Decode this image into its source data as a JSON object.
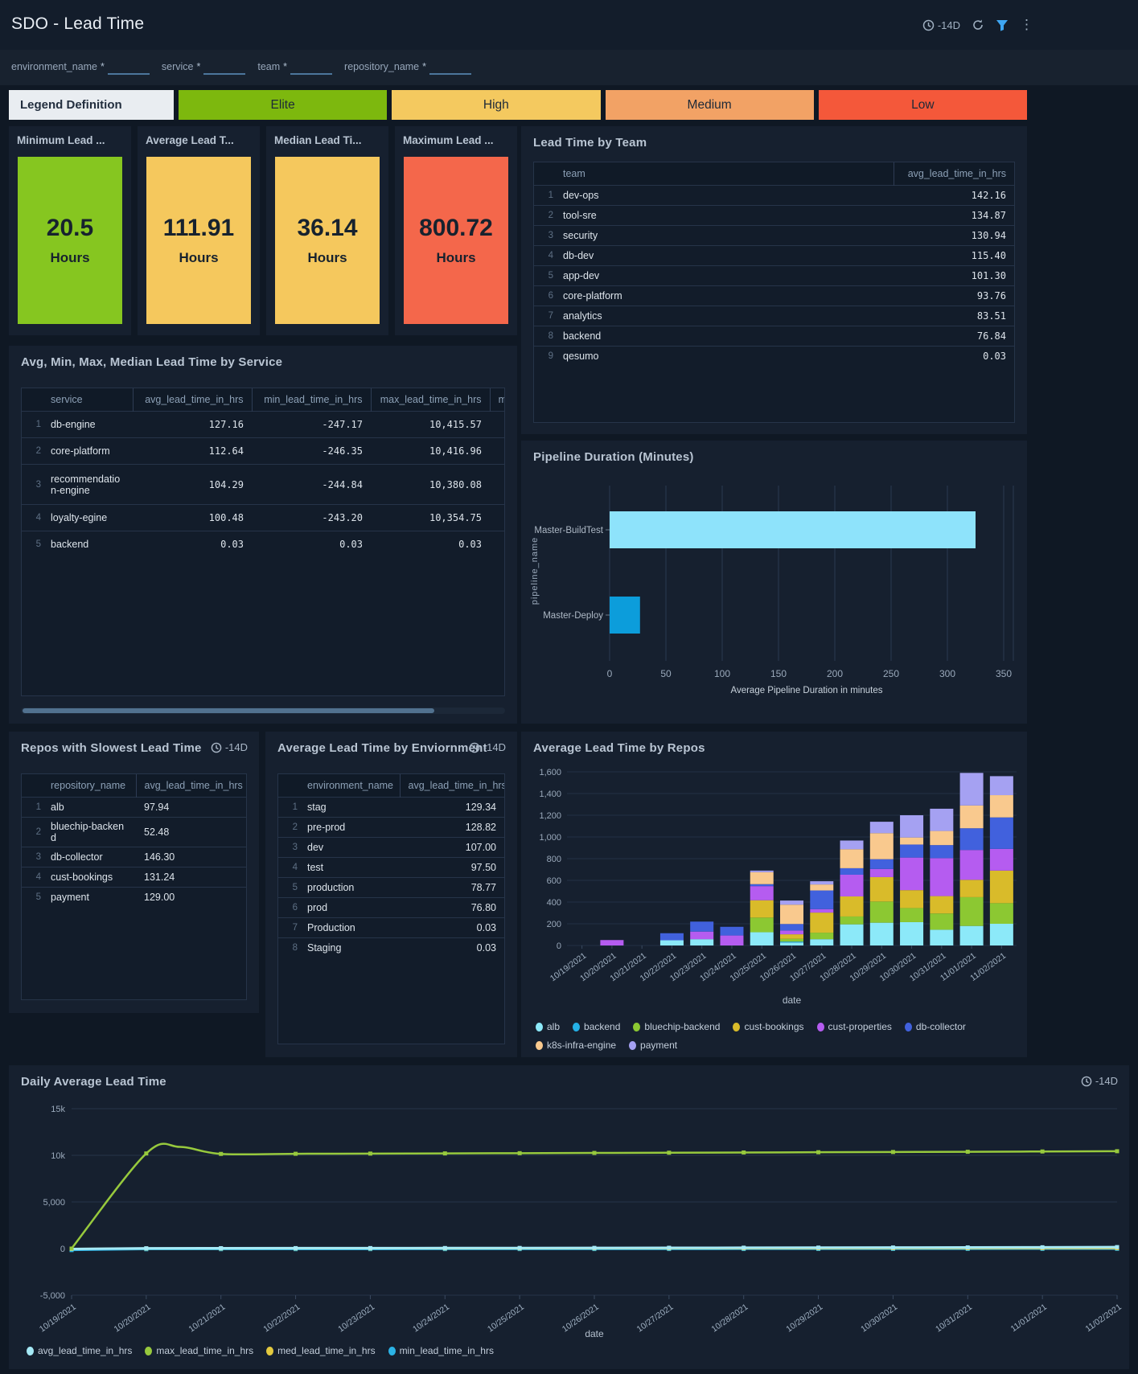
{
  "header": {
    "title": "SDO - Lead Time",
    "time_range": "-14D",
    "icons": [
      "clock-icon",
      "refresh-icon",
      "filter-icon",
      "kebab-menu-icon"
    ]
  },
  "filters": {
    "items": [
      {
        "label": "environment_name",
        "required": "*",
        "value": ""
      },
      {
        "label": "service",
        "required": "*",
        "value": ""
      },
      {
        "label": "team",
        "required": "*",
        "value": ""
      },
      {
        "label": "repository_name",
        "required": "*",
        "value": ""
      }
    ]
  },
  "legend_bar": {
    "definition_label": "Legend Definition",
    "levels": [
      {
        "label": "Elite",
        "color": "#7db80e"
      },
      {
        "label": "High",
        "color": "#f4c95f"
      },
      {
        "label": "Medium",
        "color": "#f2a265"
      },
      {
        "label": "Low",
        "color": "#f4583a"
      }
    ]
  },
  "kpis": [
    {
      "title": "Minimum Lead ...",
      "value": "20.5",
      "unit": "Hours",
      "color": "#86c620"
    },
    {
      "title": "Average Lead T...",
      "value": "111.91",
      "unit": "Hours",
      "color": "#f5c85d"
    },
    {
      "title": "Median Lead Ti...",
      "value": "36.14",
      "unit": "Hours",
      "color": "#f5c85d"
    },
    {
      "title": "Maximum Lead ...",
      "value": "800.72",
      "unit": "Hours",
      "color": "#f4674b"
    }
  ],
  "panels": {
    "team": {
      "title": "Lead Time by Team",
      "columns": [
        "team",
        "avg_lead_time_in_hrs"
      ],
      "rows": [
        [
          "dev-ops",
          "142.16"
        ],
        [
          "tool-sre",
          "134.87"
        ],
        [
          "security",
          "130.94"
        ],
        [
          "db-dev",
          "115.40"
        ],
        [
          "app-dev",
          "101.30"
        ],
        [
          "core-platform",
          "93.76"
        ],
        [
          "analytics",
          "83.51"
        ],
        [
          "backend",
          "76.84"
        ],
        [
          "qesumo",
          "0.03"
        ]
      ]
    },
    "service": {
      "title": "Avg, Min, Max, Median Lead Time by Service",
      "columns": [
        "service",
        "avg_lead_time_in_hrs",
        "min_lead_time_in_hrs",
        "max_lead_time_in_hrs",
        "me"
      ],
      "rows": [
        [
          "db-engine",
          "127.16",
          "-247.17",
          "10,415.57",
          ""
        ],
        [
          "core-platform",
          "112.64",
          "-246.35",
          "10,416.96",
          ""
        ],
        [
          "recommendation-engine",
          "104.29",
          "-244.84",
          "10,380.08",
          ""
        ],
        [
          "loyalty-egine",
          "100.48",
          "-243.20",
          "10,354.75",
          ""
        ],
        [
          "backend",
          "0.03",
          "0.03",
          "0.03",
          ""
        ]
      ]
    },
    "pipeline": {
      "title": "Pipeline Duration (Minutes)",
      "chart_data": {
        "type": "bar",
        "orientation": "horizontal",
        "categories": [
          "Master-BuildTest",
          "Master-Deploy"
        ],
        "values": [
          325,
          27
        ],
        "colors": [
          "#8ee3fb",
          "#0c9ddb"
        ],
        "xlabel": "Average Pipeline Duration in minutes",
        "ylabel": "pipeline_name",
        "xlim": [
          0,
          350
        ],
        "xticks": [
          0,
          50,
          100,
          150,
          200,
          250,
          300,
          350
        ]
      }
    },
    "repos_slowest": {
      "title": "Repos with Slowest Lead Time",
      "time_range": "-14D",
      "columns": [
        "repository_name",
        "avg_lead_time_in_hrs"
      ],
      "rows": [
        [
          "alb",
          "97.94"
        ],
        [
          "bluechip-backend",
          "52.48"
        ],
        [
          "db-collector",
          "146.30"
        ],
        [
          "cust-bookings",
          "131.24"
        ],
        [
          "payment",
          "129.00"
        ]
      ]
    },
    "environment": {
      "title": "Average Lead Time by Enviornment",
      "time_range": "-14D",
      "columns": [
        "environment_name",
        "avg_lead_time_in_hrs"
      ],
      "rows": [
        [
          "stag",
          "129.34"
        ],
        [
          "pre-prod",
          "128.82"
        ],
        [
          "dev",
          "107.00"
        ],
        [
          "test",
          "97.50"
        ],
        [
          "production",
          "78.77"
        ],
        [
          "prod",
          "76.80"
        ],
        [
          "Production",
          "0.03"
        ],
        [
          "Staging",
          "0.03"
        ]
      ]
    },
    "repos_chart": {
      "title": "Average Lead Time by Repos",
      "chart_data": {
        "type": "bar",
        "stacked": true,
        "x": [
          "10/19/2021",
          "10/20/2021",
          "10/21/2021",
          "10/22/2021",
          "10/23/2021",
          "10/24/2021",
          "10/25/2021",
          "10/26/2021",
          "10/27/2021",
          "10/28/2021",
          "10/29/2021",
          "10/30/2021",
          "10/31/2021",
          "11/01/2021",
          "11/02/2021"
        ],
        "xlabel": "date",
        "ylim": [
          0,
          1600
        ],
        "ytick_labels": [
          "0",
          "200",
          "400",
          "600",
          "800",
          "1,000",
          "1,200",
          "1,400",
          "1,600"
        ],
        "series": [
          {
            "name": "alb",
            "color": "#8ce9f9",
            "values": [
              0,
              0,
              0,
              48,
              58,
              0,
              122,
              28,
              58,
              195,
              210,
              215,
              145,
              180,
              200
            ]
          },
          {
            "name": "backend",
            "color": "#24b0e6",
            "values": [
              0,
              0,
              0,
              0,
              0,
              0,
              0,
              8,
              0,
              0,
              0,
              0,
              0,
              0,
              0
            ]
          },
          {
            "name": "bluechip-backend",
            "color": "#8cc832",
            "values": [
              0,
              0,
              0,
              0,
              0,
              0,
              135,
              25,
              60,
              72,
              195,
              130,
              150,
              265,
              190
            ]
          },
          {
            "name": "cust-bookings",
            "color": "#d9bb2a",
            "values": [
              0,
              0,
              0,
              0,
              0,
              0,
              160,
              42,
              185,
              185,
              225,
              165,
              160,
              160,
              300
            ]
          },
          {
            "name": "cust-properties",
            "color": "#b55cf0",
            "values": [
              0,
              50,
              0,
              0,
              70,
              92,
              130,
              35,
              32,
              200,
              75,
              300,
              350,
              275,
              200
            ]
          },
          {
            "name": "db-collector",
            "color": "#4161dd",
            "values": [
              0,
              0,
              0,
              65,
              92,
              80,
              18,
              60,
              172,
              60,
              90,
              120,
              120,
              200,
              290
            ]
          },
          {
            "name": "k8s-infra-engine",
            "color": "#f9c98e",
            "values": [
              0,
              0,
              0,
              0,
              0,
              0,
              110,
              178,
              55,
              175,
              240,
              65,
              130,
              210,
              205
            ]
          },
          {
            "name": "payment",
            "color": "#a5a1f2",
            "values": [
              0,
              0,
              0,
              0,
              0,
              0,
              15,
              38,
              30,
              80,
              105,
              205,
              205,
              300,
              175
            ]
          }
        ]
      }
    },
    "daily": {
      "title": "Daily Average Lead Time",
      "time_range": "-14D",
      "chart_data": {
        "type": "line",
        "x": [
          "10/19/2021",
          "10/20/2021",
          "10/21/2021",
          "10/22/2021",
          "10/23/2021",
          "10/24/2021",
          "10/25/2021",
          "10/26/2021",
          "10/27/2021",
          "10/28/2021",
          "10/29/2021",
          "10/30/2021",
          "10/31/2021",
          "11/01/2021",
          "11/02/2021"
        ],
        "xlabel": "date",
        "ylim": [
          -5000,
          15000
        ],
        "ytick_labels": [
          "-5,000",
          "0",
          "5,000",
          "10k",
          "15k"
        ],
        "smoothing_overshoot_max": 10900,
        "series": [
          {
            "name": "avg_lead_time_in_hrs",
            "color": "#a5e9f6",
            "values": [
              -40,
              35,
              45,
              50,
              55,
              60,
              68,
              75,
              85,
              95,
              105,
              115,
              125,
              140,
              160
            ]
          },
          {
            "name": "max_lead_time_in_hrs",
            "color": "#97c93d",
            "values": [
              0,
              10200,
              10150,
              10165,
              10185,
              10205,
              10230,
              10255,
              10280,
              10305,
              10330,
              10355,
              10380,
              10410,
              10440
            ]
          },
          {
            "name": "med_lead_time_in_hrs",
            "color": "#e3c93f",
            "values": [
              -25,
              12,
              15,
              18,
              20,
              22,
              25,
              28,
              30,
              33,
              36,
              39,
              42,
              45,
              48
            ]
          },
          {
            "name": "min_lead_time_in_hrs",
            "color": "#2bb3e6",
            "values": [
              -160,
              -70,
              -65,
              -62,
              -60,
              -58,
              -55,
              -52,
              -50,
              -48,
              -45,
              -42,
              -40,
              -36,
              -30
            ]
          }
        ]
      }
    }
  }
}
